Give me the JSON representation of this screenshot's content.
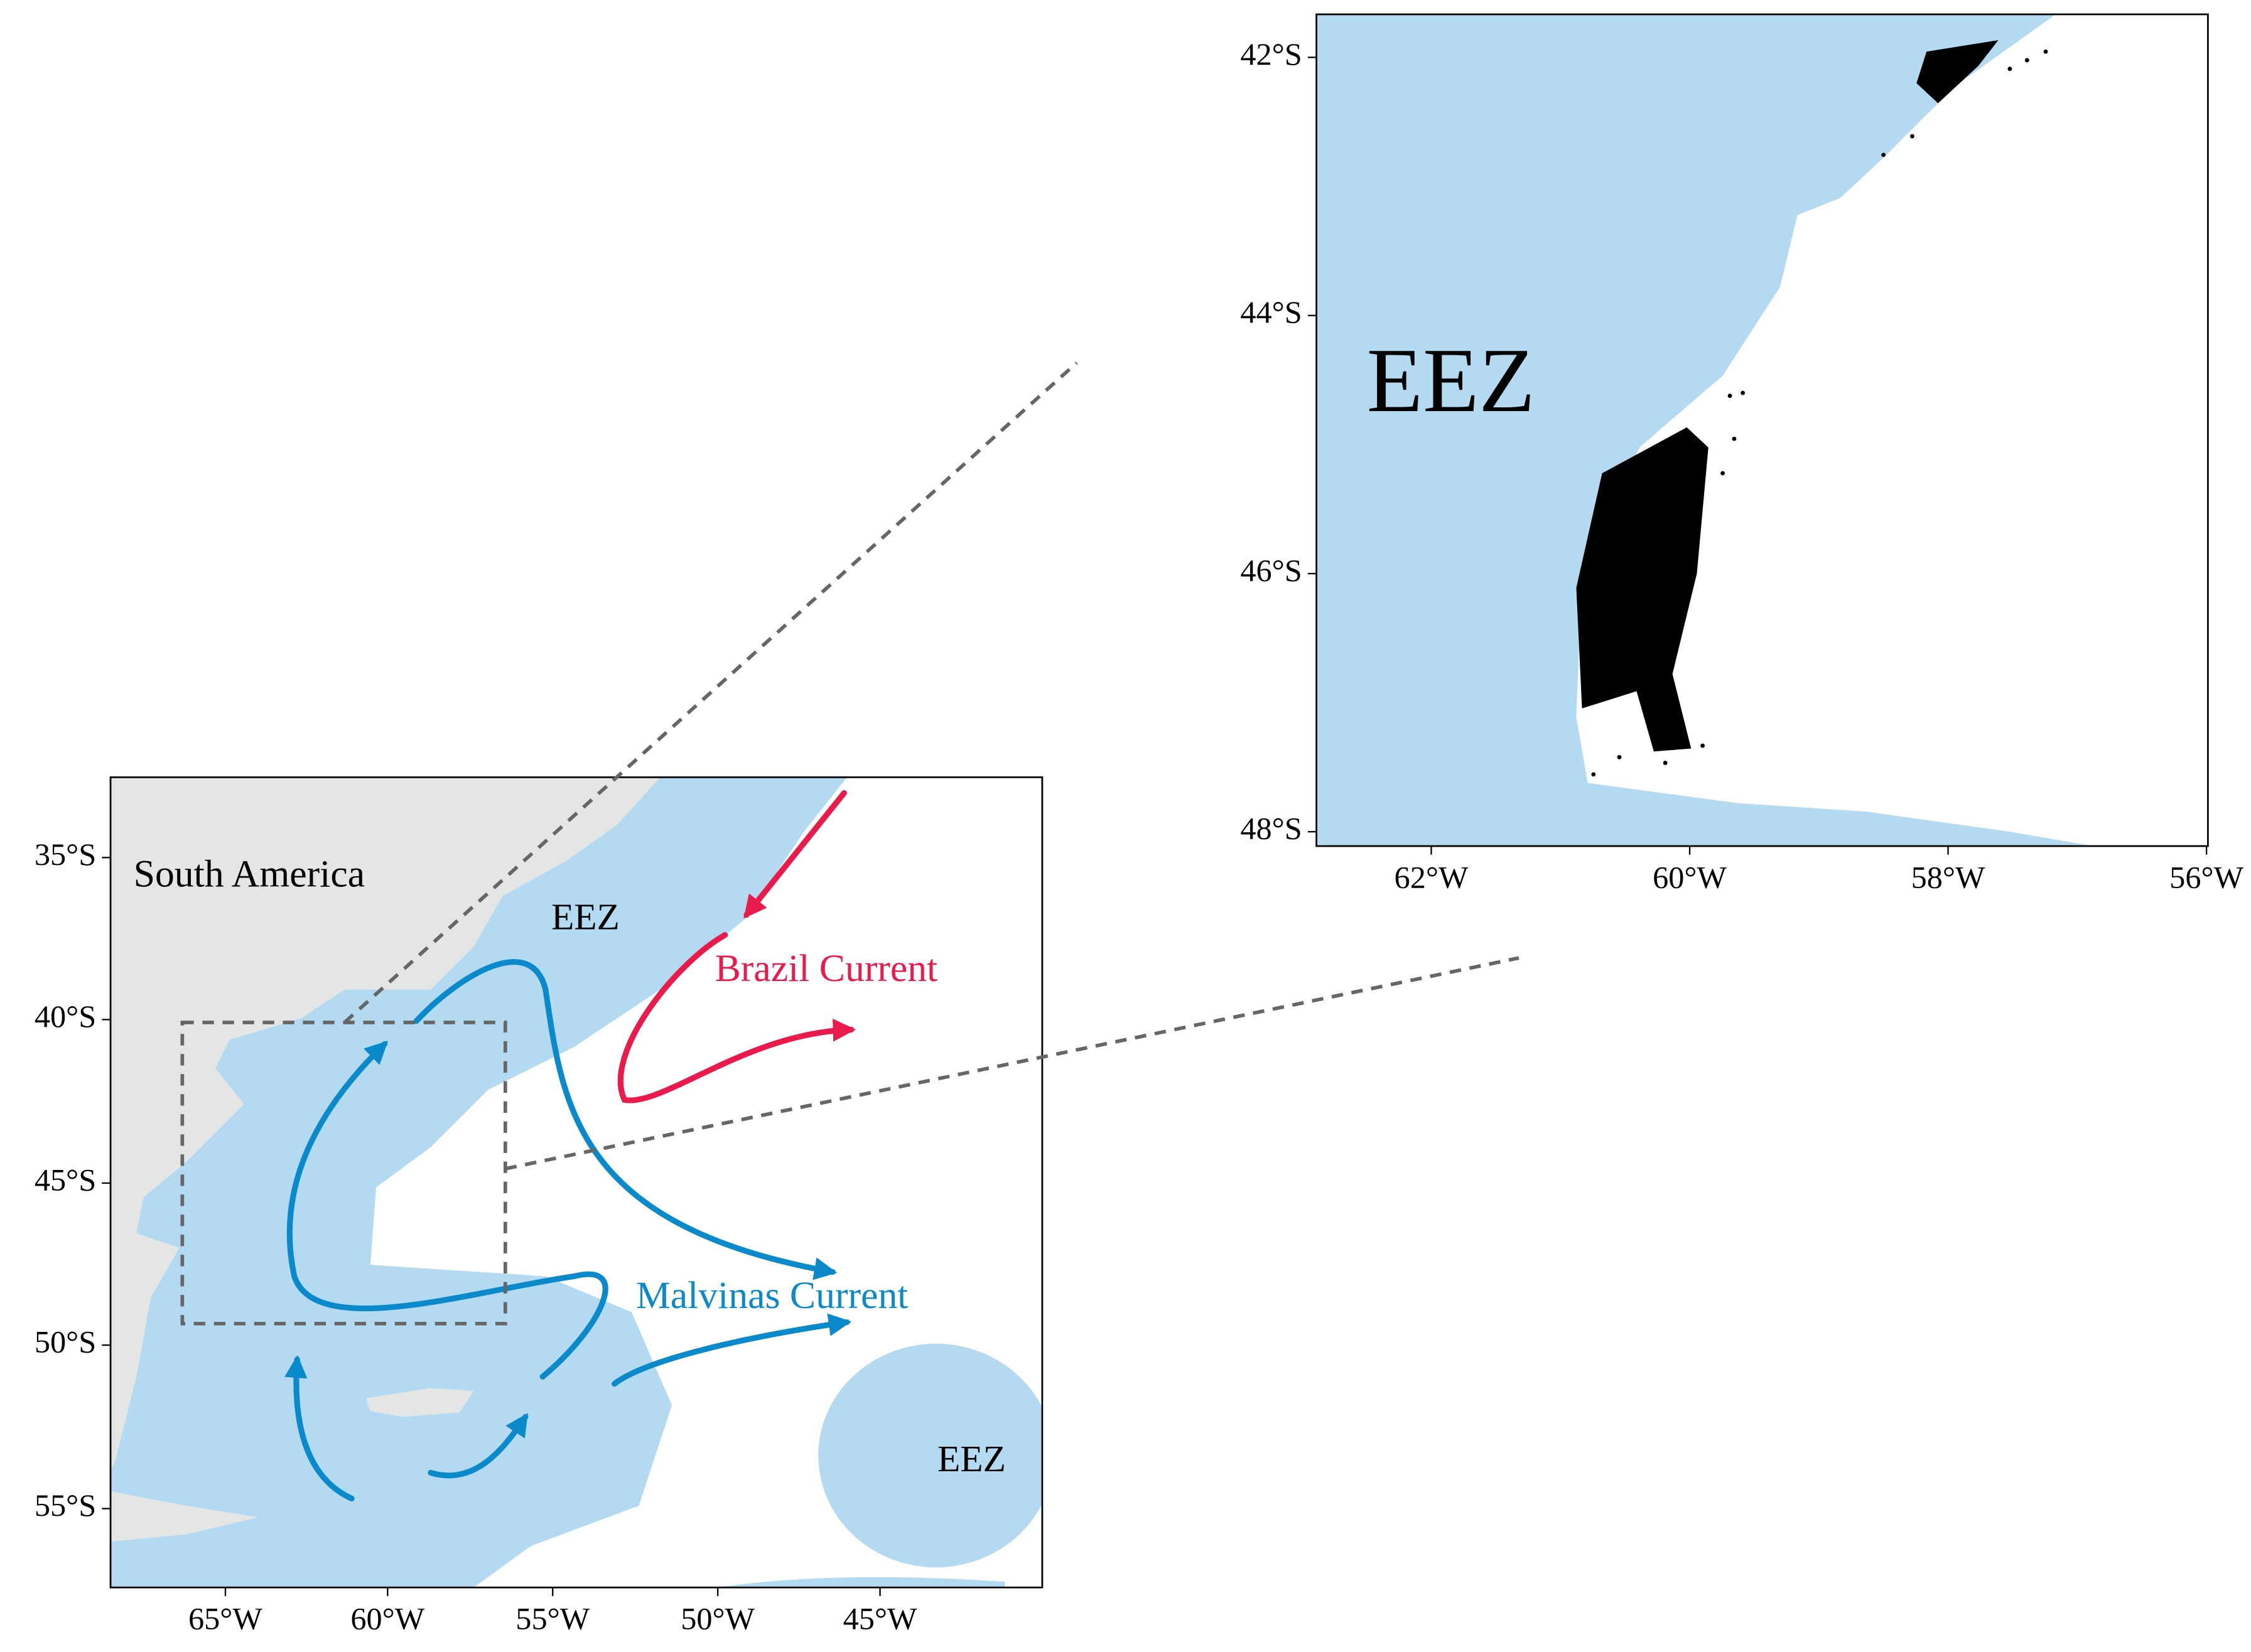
{
  "main_map": {
    "x_ticks": [
      "65°W",
      "60°W",
      "55°W",
      "50°W",
      "45°W"
    ],
    "y_ticks": [
      "35°S",
      "40°S",
      "45°S",
      "50°S",
      "55°S"
    ],
    "labels": {
      "continent": "South America",
      "eez_north": "EEZ",
      "eez_east": "EEZ",
      "brazil_current": "Brazil Current",
      "malvinas_current": "Malvinas Current"
    }
  },
  "inset_map": {
    "x_ticks": [
      "62°W",
      "60°W",
      "58°W",
      "56°W"
    ],
    "y_ticks": [
      "42°S",
      "44°S",
      "46°S",
      "48°S"
    ],
    "label": "EEZ"
  }
}
